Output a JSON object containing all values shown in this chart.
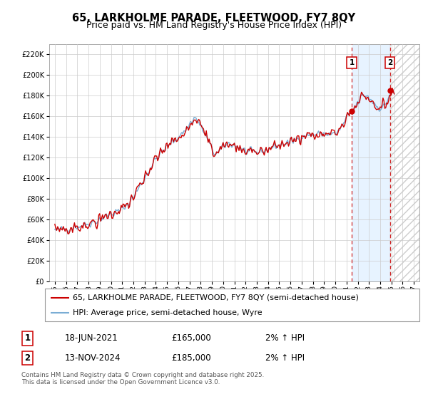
{
  "title": "65, LARKHOLME PARADE, FLEETWOOD, FY7 8QY",
  "subtitle": "Price paid vs. HM Land Registry's House Price Index (HPI)",
  "legend_line1": "65, LARKHOLME PARADE, FLEETWOOD, FY7 8QY (semi-detached house)",
  "legend_line2": "HPI: Average price, semi-detached house, Wyre",
  "footer": "Contains HM Land Registry data © Crown copyright and database right 2025.\nThis data is licensed under the Open Government Licence v3.0.",
  "sale1_date": "18-JUN-2021",
  "sale1_price": 165000,
  "sale1_hpi_text": "2% ↑ HPI",
  "sale1_year": 2021.46,
  "sale2_date": "13-NOV-2024",
  "sale2_price": 185000,
  "sale2_hpi_text": "2% ↑ HPI",
  "sale2_year": 2024.87,
  "xlim": [
    1994.5,
    2027.5
  ],
  "ylim": [
    0,
    230000
  ],
  "yticks": [
    0,
    20000,
    40000,
    60000,
    80000,
    100000,
    120000,
    140000,
    160000,
    180000,
    200000,
    220000
  ],
  "xticks": [
    1995,
    1996,
    1997,
    1998,
    1999,
    2000,
    2001,
    2002,
    2003,
    2004,
    2005,
    2006,
    2007,
    2008,
    2009,
    2010,
    2011,
    2012,
    2013,
    2014,
    2015,
    2016,
    2017,
    2018,
    2019,
    2020,
    2021,
    2022,
    2023,
    2024,
    2025,
    2026,
    2027
  ],
  "price_color": "#cc0000",
  "hpi_color": "#7aadd4",
  "background_color": "#ffffff",
  "plot_bg_color": "#ffffff",
  "grid_color": "#cccccc",
  "vline_color": "#cc0000",
  "shade_color": "#ddeeff",
  "title_fontsize": 10.5,
  "subtitle_fontsize": 9,
  "legend_fontsize": 8,
  "annotation_fontsize": 8.5
}
